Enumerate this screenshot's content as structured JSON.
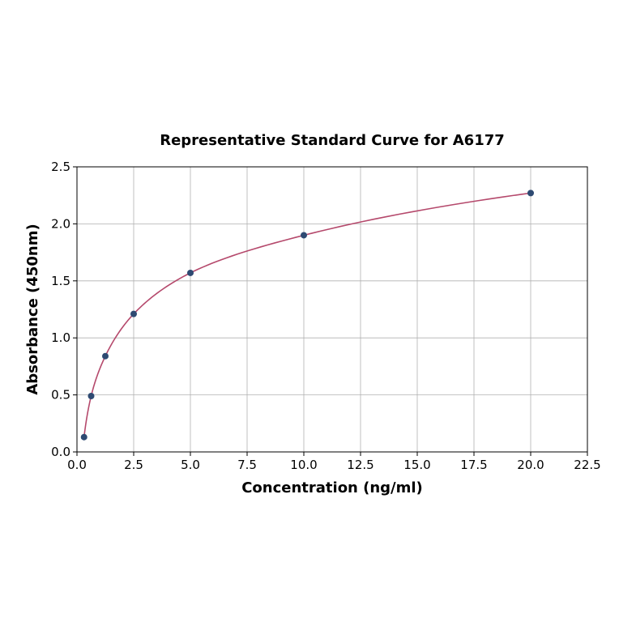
{
  "chart_data": {
    "type": "scatter",
    "title": "Representative Standard Curve for A6177",
    "xlabel": "Concentration (ng/ml)",
    "ylabel": "Absorbance (450nm)",
    "xlim": [
      0,
      22.5
    ],
    "ylim": [
      0,
      2.5
    ],
    "xticks": [
      "0.0",
      "2.5",
      "5.0",
      "7.5",
      "10.0",
      "12.5",
      "15.0",
      "17.5",
      "20.0",
      "22.5"
    ],
    "yticks": [
      "0.0",
      "0.5",
      "1.0",
      "1.5",
      "2.0",
      "2.5"
    ],
    "grid": true,
    "points": [
      {
        "x": 0.312,
        "y": 0.13
      },
      {
        "x": 0.625,
        "y": 0.49
      },
      {
        "x": 1.25,
        "y": 0.84
      },
      {
        "x": 2.5,
        "y": 1.21
      },
      {
        "x": 5,
        "y": 1.57
      },
      {
        "x": 10,
        "y": 1.9
      },
      {
        "x": 20,
        "y": 2.27
      }
    ],
    "fit_curve": true,
    "colors": {
      "points": "#2e4a72",
      "curve": "#b5496c",
      "grid": "#b0b0b0"
    }
  }
}
